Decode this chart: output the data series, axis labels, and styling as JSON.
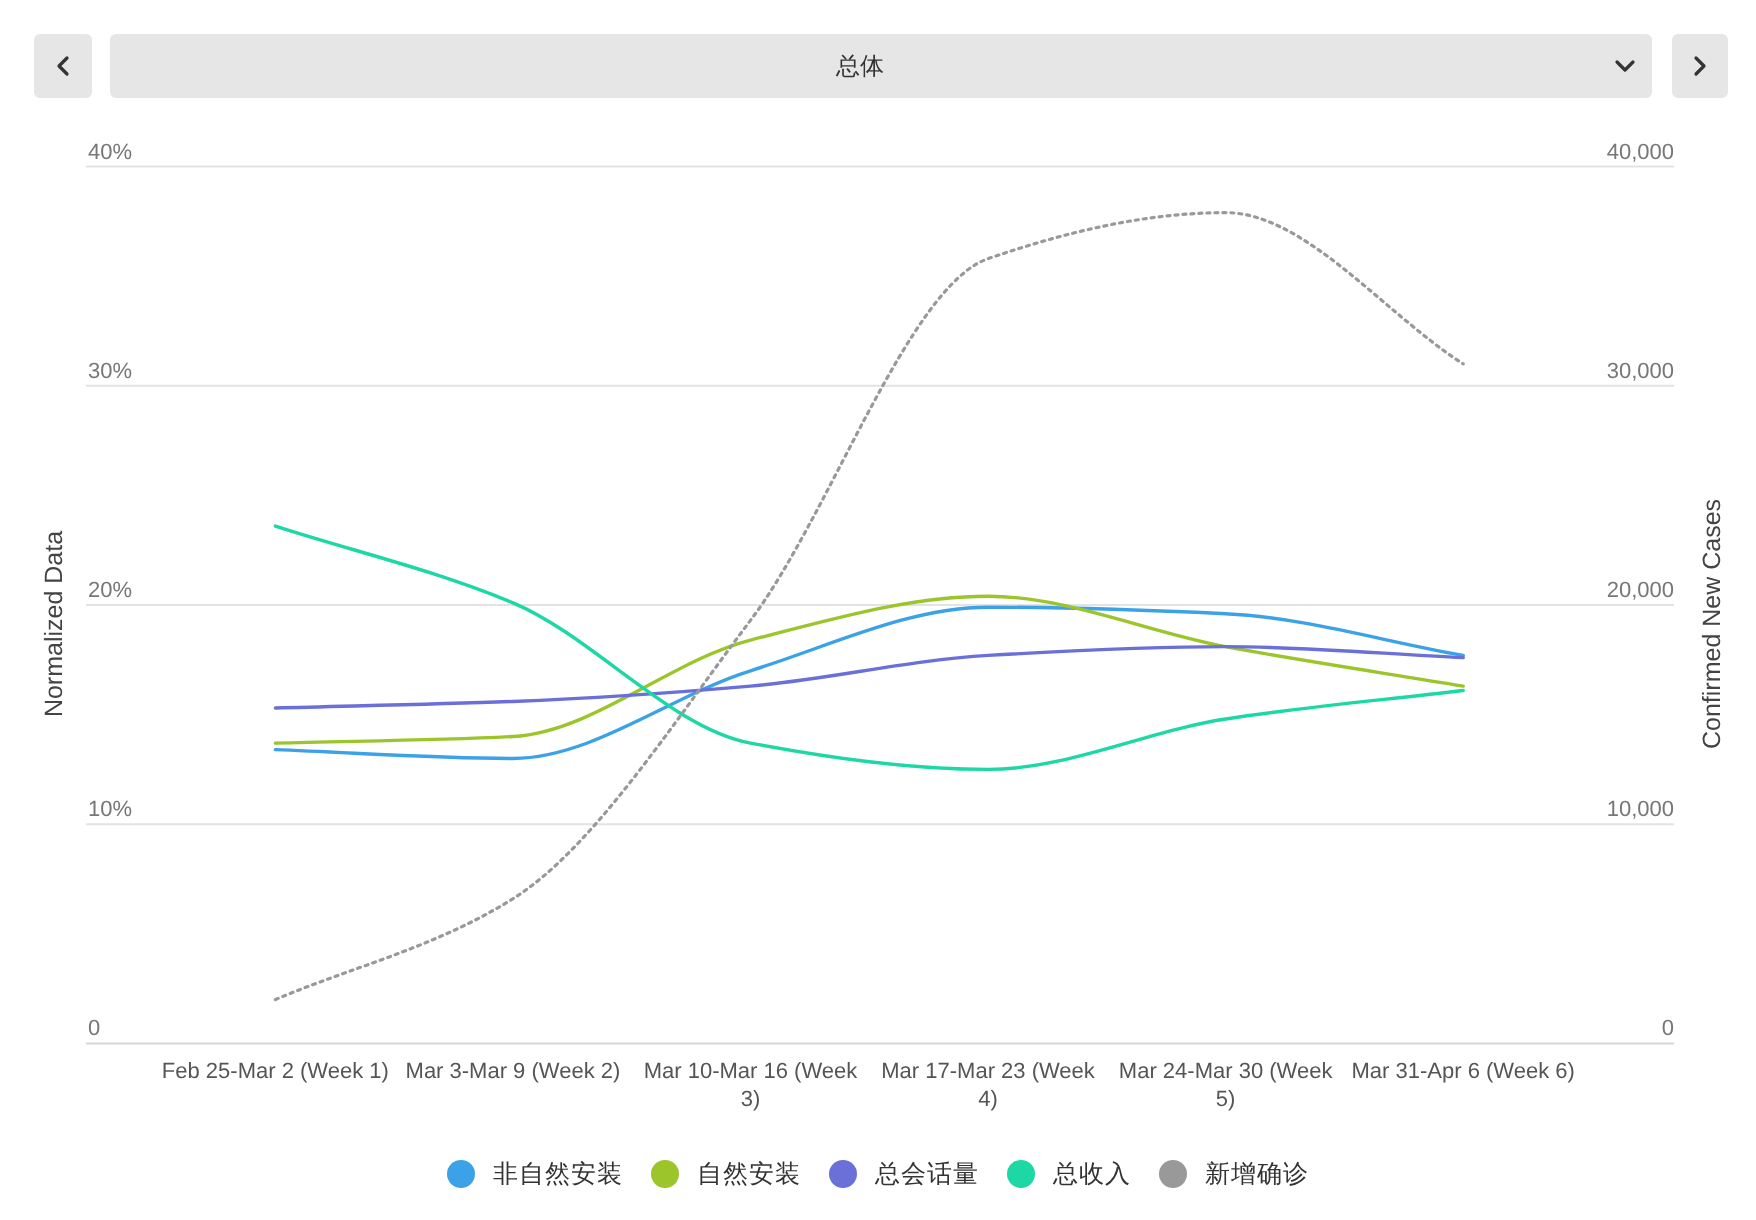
{
  "chart_data": {
    "type": "line",
    "title": "总体",
    "categories": [
      "Feb 25-Mar 2 (Week 1)",
      "Mar 3-Mar 9 (Week 2)",
      "Mar 10-Mar 16 (Week 3)",
      "Mar 17-Mar 23 (Week 4)",
      "Mar 24-Mar 30 (Week 5)",
      "Mar 31-Apr 6 (Week 6)"
    ],
    "ylabel": "Normalized Data",
    "y2label": "Confirmed New Cases",
    "ylim": [
      0,
      40
    ],
    "yticks": [
      0,
      {
        "value": 10,
        "label": "10%"
      },
      {
        "value": 20,
        "label": "20%"
      },
      {
        "value": 30,
        "label": "30%"
      },
      {
        "value": 40,
        "label": "40%"
      }
    ],
    "y2lim": [
      0,
      40000
    ],
    "y2ticks": [
      0,
      {
        "value": 10000,
        "label": "10,000"
      },
      {
        "value": 20000,
        "label": "20,000"
      },
      {
        "value": 30000,
        "label": "30,000"
      },
      {
        "value": 40000,
        "label": "40,000"
      }
    ],
    "grid": "y",
    "legend": "bottom",
    "series": [
      {
        "name": "非自然安装",
        "color": "#3ba2e8",
        "values": [
          13.4,
          13.0,
          17.0,
          19.9,
          19.6,
          17.7
        ]
      },
      {
        "name": "自然安装",
        "color": "#9bc52a",
        "values": [
          13.7,
          14.0,
          18.4,
          20.4,
          18.1,
          16.3
        ]
      },
      {
        "name": "总会话量",
        "color": "#6b70d9",
        "values": [
          15.3,
          15.6,
          16.3,
          17.7,
          18.1,
          17.6
        ]
      },
      {
        "name": "总收入",
        "color": "#1dd8a5",
        "values": [
          23.6,
          20.1,
          13.7,
          12.5,
          14.8,
          16.1
        ]
      },
      {
        "name": "新增确诊",
        "color": "#999999",
        "axis": "y2",
        "line_style": "dotted",
        "values": [
          2000,
          6600,
          19300,
          35800,
          37900,
          31000
        ]
      }
    ]
  }
}
